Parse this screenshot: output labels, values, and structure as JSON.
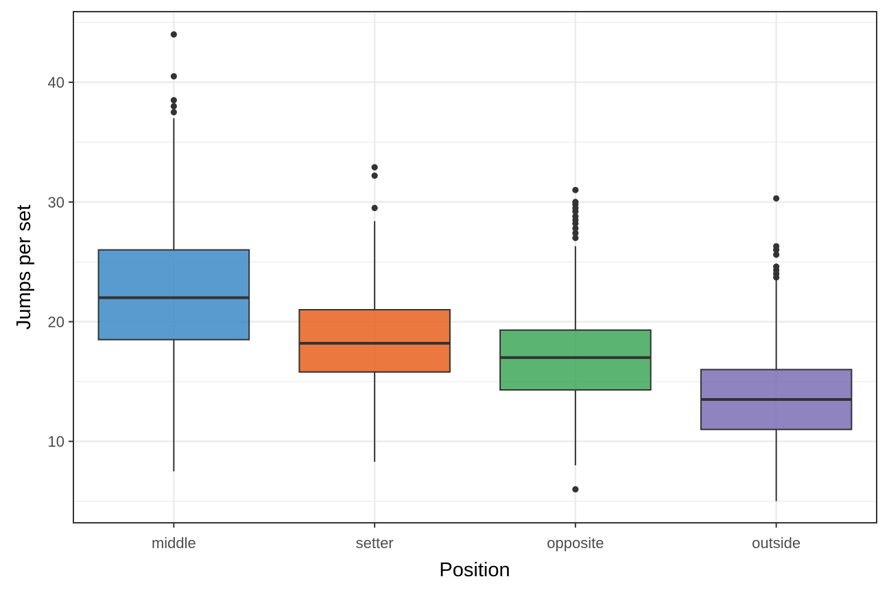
{
  "chart_data": {
    "type": "box",
    "title": "",
    "xlabel": "Position",
    "ylabel": "Jumps per set",
    "categories": [
      "middle",
      "setter",
      "opposite",
      "outside"
    ],
    "ylim": [
      3.2,
      45.9
    ],
    "yticks": [
      10,
      20,
      30,
      40
    ],
    "grid": true,
    "legend": "none",
    "colors": [
      "#3C89C5",
      "#E8601C",
      "#3FA75A",
      "#7B6DB5"
    ],
    "box_outline_color": "#333333",
    "outlier_color": "#333333",
    "boxes": [
      {
        "category": "middle",
        "lower_whisker": 7.5,
        "q1": 18.5,
        "median": 22.0,
        "q3": 26.0,
        "upper_whisker": 37.0,
        "outliers": [
          37.5,
          38.0,
          38.5,
          40.5,
          44.0
        ]
      },
      {
        "category": "setter",
        "lower_whisker": 8.3,
        "q1": 15.8,
        "median": 18.2,
        "q3": 21.0,
        "upper_whisker": 28.4,
        "outliers": [
          29.5,
          32.2,
          32.9
        ]
      },
      {
        "category": "opposite",
        "lower_whisker": 8.0,
        "q1": 14.3,
        "median": 17.0,
        "q3": 19.3,
        "upper_whisker": 26.3,
        "outliers": [
          6.0,
          27.0,
          27.4,
          27.8,
          28.2,
          28.5,
          28.8,
          29.2,
          29.5,
          29.8,
          30.0,
          31.0
        ]
      },
      {
        "category": "outside",
        "lower_whisker": 5.0,
        "q1": 11.0,
        "median": 13.5,
        "q3": 16.0,
        "upper_whisker": 23.5,
        "outliers": [
          23.7,
          24.0,
          24.3,
          24.6,
          25.6,
          26.0,
          26.3,
          30.3
        ]
      }
    ]
  }
}
